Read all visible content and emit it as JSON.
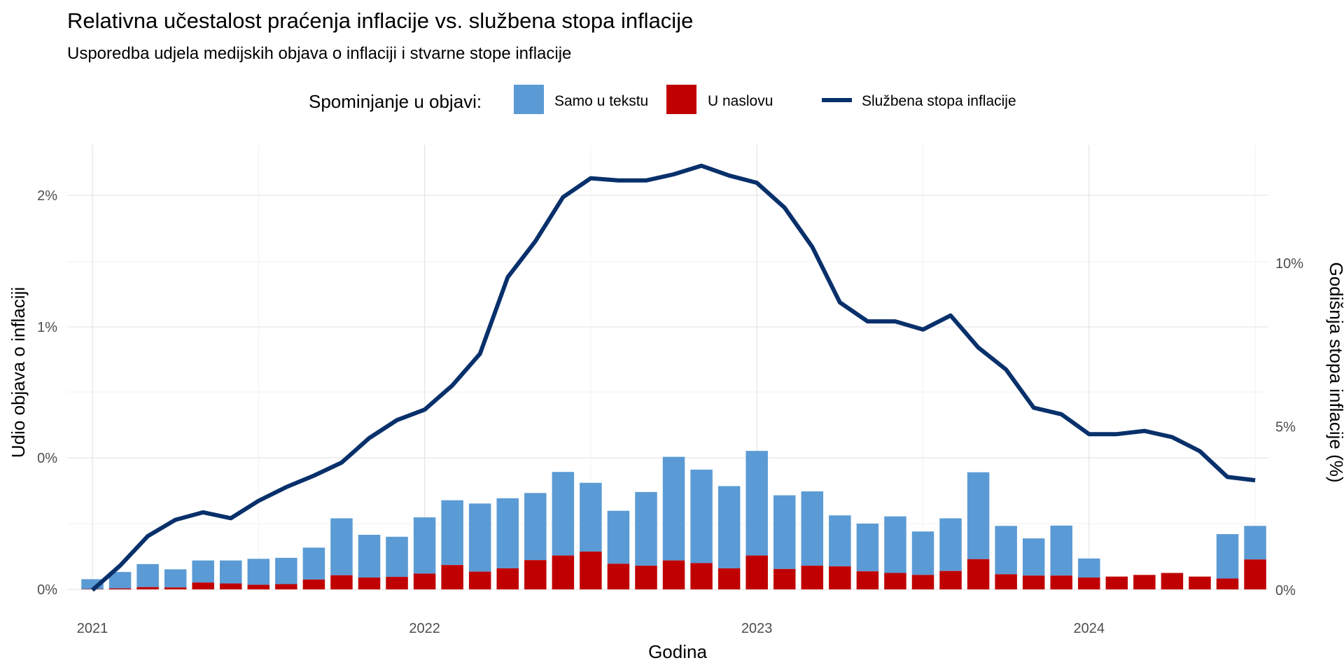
{
  "chart_data": {
    "type": "bar",
    "title": "Relativna učestalost praćenja inflacije vs. službena stopa inflacije",
    "subtitle": "Usporedba udjela medijskih objava o inflaciji i stvarne stope inflacije",
    "legend": {
      "title": "Spominjanje u objavi:",
      "position": "top",
      "items": [
        {
          "label": "Samo u tekstu",
          "color": "#5b9bd5",
          "kind": "bar"
        },
        {
          "label": "U naslovu",
          "color": "#c00000",
          "kind": "bar"
        },
        {
          "label": "Službena stopa inflacije",
          "color": "#08306b",
          "kind": "line"
        }
      ]
    },
    "xlabel": "Godina",
    "ylabel": "Udio objava o inflaciji",
    "y2label": "Godišnja stopa inflacije (%)",
    "xticks": [
      "2021",
      "2022",
      "2023",
      "2024"
    ],
    "xlim": [
      "2020-12-01",
      "2024-08-01"
    ],
    "yticks": [
      "0%",
      "0%",
      "1%",
      "2%"
    ],
    "y2ticks": [
      "0%",
      "5%",
      "10%"
    ],
    "y2lim": [
      0,
      13
    ],
    "grid": true,
    "colors": {
      "text_only": "#5b9bd5",
      "headline": "#c00000",
      "inflation_line": "#08306b",
      "grid": "#e6e6e6"
    },
    "x": [
      "2021-01",
      "2021-02",
      "2021-03",
      "2021-04",
      "2021-05",
      "2021-06",
      "2021-07",
      "2021-08",
      "2021-09",
      "2021-10",
      "2021-11",
      "2021-12",
      "2022-01",
      "2022-02",
      "2022-03",
      "2022-04",
      "2022-05",
      "2022-06",
      "2022-07",
      "2022-08",
      "2022-09",
      "2022-10",
      "2022-11",
      "2022-12",
      "2023-01",
      "2023-02",
      "2023-03",
      "2023-04",
      "2023-05",
      "2023-06",
      "2023-07",
      "2023-08",
      "2023-09",
      "2023-10",
      "2023-11",
      "2023-12",
      "2024-01",
      "2024-02",
      "2024-03",
      "2024-04",
      "2024-05",
      "2024-06",
      "2024-07"
    ],
    "series": [
      {
        "name": "U naslovu",
        "type": "bar",
        "values": [
          0.01,
          0.03,
          0.07,
          0.06,
          0.21,
          0.18,
          0.14,
          0.16,
          0.3,
          0.43,
          0.36,
          0.38,
          0.48,
          0.74,
          0.54,
          0.64,
          0.89,
          1.03,
          1.15,
          0.78,
          0.72,
          0.88,
          0.8,
          0.64,
          1.03,
          0.62,
          0.72,
          0.7,
          0.55,
          0.5,
          0.44,
          0.56,
          0.92,
          0.46,
          0.42,
          0.42,
          0.36,
          0.39,
          0.44,
          0.5,
          0.39,
          0.33,
          0.91
        ]
      },
      {
        "name": "Samo u tekstu",
        "type": "bar",
        "values": [
          0.3,
          0.5,
          0.7,
          0.55,
          0.67,
          0.7,
          0.79,
          0.8,
          0.97,
          1.73,
          1.3,
          1.22,
          1.71,
          1.97,
          2.07,
          2.13,
          2.04,
          2.54,
          2.09,
          1.61,
          2.24,
          3.15,
          2.84,
          2.5,
          3.18,
          2.24,
          2.26,
          1.55,
          1.45,
          1.72,
          1.32,
          1.6,
          2.64,
          1.47,
          1.13,
          1.52,
          0.58,
          0,
          0,
          0,
          0,
          1.35,
          1.02
        ]
      },
      {
        "name": "Službena stopa inflacije",
        "type": "line",
        "axis": "right",
        "values": [
          0,
          0.75,
          1.65,
          2.15,
          2.38,
          2.2,
          2.73,
          3.15,
          3.5,
          3.9,
          4.65,
          5.2,
          5.52,
          6.26,
          7.23,
          9.57,
          10.67,
          12.02,
          12.6,
          12.53,
          12.53,
          12.72,
          12.98,
          12.68,
          12.46,
          11.7,
          10.5,
          8.8,
          8.22,
          8.22,
          7.97,
          8.4,
          7.42,
          6.75,
          5.58,
          5.38,
          4.77,
          4.77,
          4.87,
          4.68,
          4.25,
          3.46,
          3.36
        ]
      }
    ]
  }
}
